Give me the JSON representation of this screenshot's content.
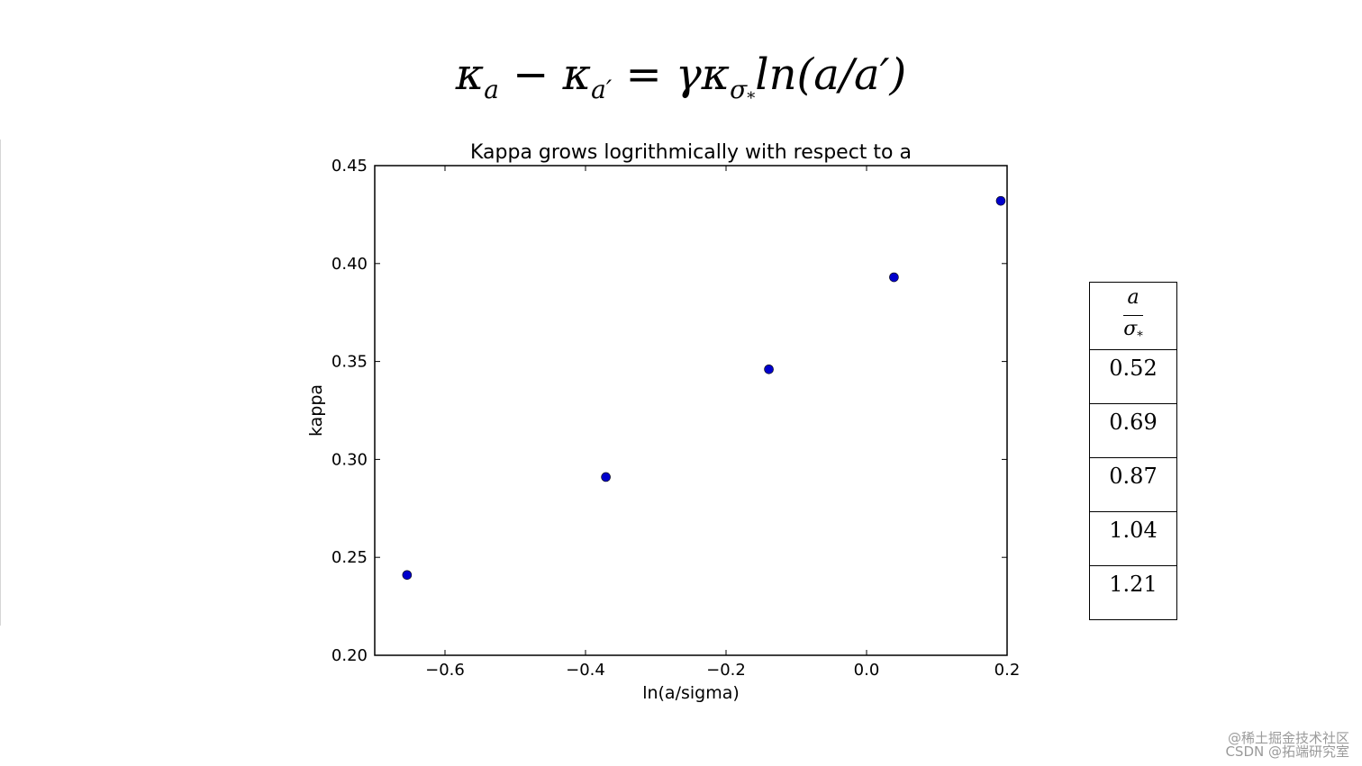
{
  "formula": {
    "lhs_kappa_a": "κ",
    "sub_a": "a",
    "minus": " − ",
    "lhs_kappa_ap": "κ",
    "sub_ap": "a′",
    "equals": " = γκ",
    "sub_sigma": "σ",
    "sub_star": "*",
    "rhs": "ln(a/a′)"
  },
  "chart_data": {
    "type": "scatter",
    "title": "Kappa grows logrithmically with respect to a",
    "xlabel": "ln(a/sigma)",
    "ylabel": "kappa",
    "xlim": [
      -0.7,
      0.2
    ],
    "ylim": [
      0.2,
      0.45
    ],
    "xticks": [
      -0.6,
      -0.4,
      -0.2,
      0.0,
      0.2
    ],
    "xtick_labels": [
      "−0.6",
      "−0.4",
      "−0.2",
      "0.0",
      "0.2"
    ],
    "yticks": [
      0.2,
      0.25,
      0.3,
      0.35,
      0.4,
      0.45
    ],
    "ytick_labels": [
      "0.20",
      "0.25",
      "0.30",
      "0.35",
      "0.40",
      "0.45"
    ],
    "grid": false,
    "marker_color": "#0000cc",
    "points": [
      {
        "x": -0.654,
        "y": 0.241
      },
      {
        "x": -0.371,
        "y": 0.291
      },
      {
        "x": -0.139,
        "y": 0.346
      },
      {
        "x": 0.039,
        "y": 0.393
      },
      {
        "x": 0.191,
        "y": 0.432
      }
    ]
  },
  "table": {
    "header_num": "a",
    "header_den": "σ",
    "header_den_sub": "*",
    "rows": [
      "0.52",
      "0.69",
      "0.87",
      "1.04",
      "1.21"
    ]
  },
  "watermark": {
    "line1": "@稀土掘金技术社区",
    "line2": "CSDN @拓端研究室"
  }
}
